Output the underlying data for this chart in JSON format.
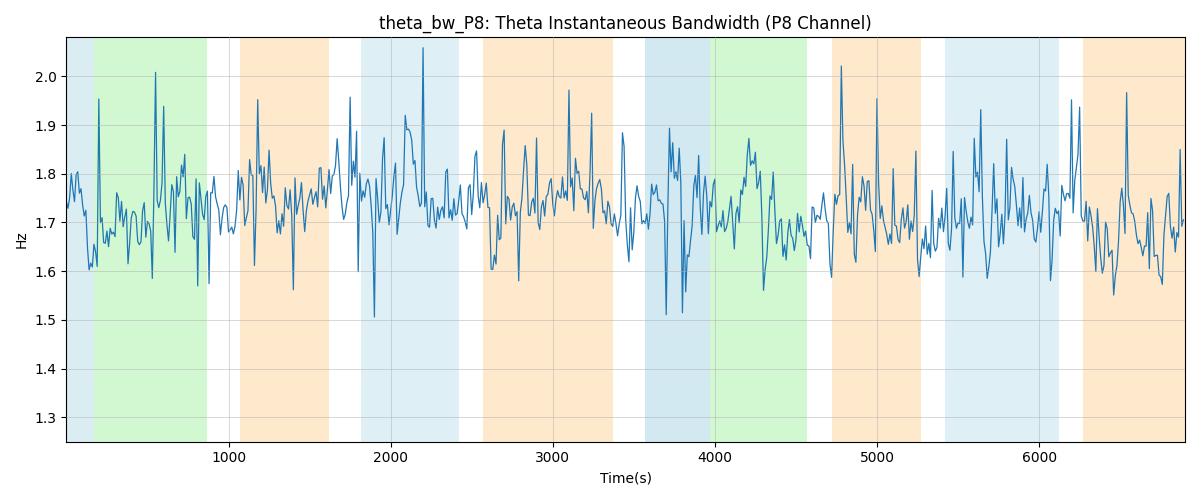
{
  "title": "theta_bw_P8: Theta Instantaneous Bandwidth (P8 Channel)",
  "xlabel": "Time(s)",
  "ylabel": "Hz",
  "xlim": [
    0,
    6900
  ],
  "ylim": [
    1.25,
    2.08
  ],
  "yticks": [
    1.3,
    1.4,
    1.5,
    1.6,
    1.7,
    1.8,
    1.9,
    2.0
  ],
  "xticks": [
    1000,
    2000,
    3000,
    4000,
    5000,
    6000
  ],
  "line_color": "#1f77b4",
  "line_width": 0.9,
  "seed": 42,
  "n_points": 690,
  "x_scale": 10,
  "signal_mean": 1.715,
  "bands": [
    {
      "start": 0,
      "end": 170,
      "color": "#add8e6",
      "alpha": 0.45
    },
    {
      "start": 170,
      "end": 870,
      "color": "#90ee90",
      "alpha": 0.4
    },
    {
      "start": 1070,
      "end": 1620,
      "color": "#ffd59a",
      "alpha": 0.5
    },
    {
      "start": 1820,
      "end": 2420,
      "color": "#add8e6",
      "alpha": 0.4
    },
    {
      "start": 2570,
      "end": 3370,
      "color": "#ffd59a",
      "alpha": 0.5
    },
    {
      "start": 3570,
      "end": 3970,
      "color": "#add8e6",
      "alpha": 0.55
    },
    {
      "start": 3970,
      "end": 4570,
      "color": "#90ee90",
      "alpha": 0.4
    },
    {
      "start": 4720,
      "end": 5270,
      "color": "#ffd59a",
      "alpha": 0.5
    },
    {
      "start": 5420,
      "end": 6120,
      "color": "#add8e6",
      "alpha": 0.4
    },
    {
      "start": 6270,
      "end": 6900,
      "color": "#ffd59a",
      "alpha": 0.5
    }
  ],
  "bg_color": "#ffffff",
  "grid_color": "#b0b0b0",
  "grid_alpha": 0.7,
  "figsize": [
    12,
    5
  ],
  "dpi": 100
}
